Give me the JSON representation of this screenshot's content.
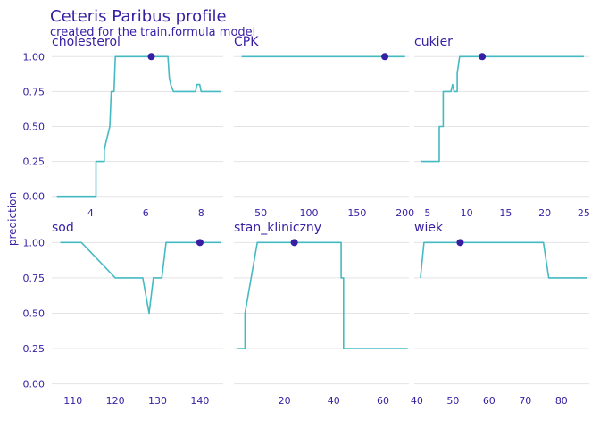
{
  "chart_data": {
    "type": "line",
    "title": "Ceteris Paribus profile",
    "subtitle": "created for the train.formula model",
    "ylabel": "prediction",
    "ylim": [
      -0.04,
      1.04
    ],
    "y_ticks": [
      0,
      0.25,
      0.5,
      0.75,
      1
    ],
    "y_tick_labels": [
      "0.00",
      "0.25",
      "0.50",
      "0.75",
      "1.00"
    ],
    "grid": true,
    "colors": {
      "line": "#46bac2",
      "point": "#371ea3",
      "text": "#371ea3"
    },
    "panels": [
      {
        "name": "cholesterol",
        "xlim": [
          2.6,
          8.8
        ],
        "x_ticks": [
          4,
          6,
          8
        ],
        "x_tick_labels": [
          "4",
          "6",
          "8"
        ],
        "series": [
          [
            2.78,
            0
          ],
          [
            4.2,
            0
          ],
          [
            4.2,
            0.25
          ],
          [
            4.5,
            0.25
          ],
          [
            4.5,
            0.33
          ],
          [
            4.55,
            0.38
          ],
          [
            4.7,
            0.5
          ],
          [
            4.75,
            0.75
          ],
          [
            4.85,
            0.75
          ],
          [
            4.9,
            1
          ],
          [
            6.8,
            1
          ],
          [
            6.85,
            0.85
          ],
          [
            6.9,
            0.8
          ],
          [
            7.0,
            0.75
          ],
          [
            7.8,
            0.75
          ],
          [
            7.85,
            0.8
          ],
          [
            7.95,
            0.8
          ],
          [
            8.0,
            0.75
          ],
          [
            8.7,
            0.75
          ]
        ],
        "point": [
          6.2,
          1
        ]
      },
      {
        "name": "CPK",
        "xlim": [
          22,
          204
        ],
        "x_ticks": [
          50,
          100,
          150,
          200
        ],
        "x_tick_labels": [
          "50",
          "100",
          "150",
          "200"
        ],
        "series": [
          [
            30,
            1
          ],
          [
            200,
            1
          ]
        ],
        "point": [
          179,
          1
        ]
      },
      {
        "name": "cukier",
        "xlim": [
          3.3,
          25.7
        ],
        "x_ticks": [
          5,
          10,
          15,
          20,
          25
        ],
        "x_tick_labels": [
          "5",
          "10",
          "15",
          "20",
          "25"
        ],
        "series": [
          [
            4.2,
            0.25
          ],
          [
            6.5,
            0.25
          ],
          [
            6.5,
            0.5
          ],
          [
            7.0,
            0.5
          ],
          [
            7.0,
            0.75
          ],
          [
            8.0,
            0.75
          ],
          [
            8.2,
            0.8
          ],
          [
            8.4,
            0.75
          ],
          [
            8.8,
            0.75
          ],
          [
            8.8,
            0.88
          ],
          [
            9.1,
            1
          ],
          [
            25,
            1
          ]
        ],
        "point": [
          12,
          1
        ]
      },
      {
        "name": "sod",
        "xlim": [
          105,
          145.5
        ],
        "x_ticks": [
          110,
          120,
          130,
          140
        ],
        "x_tick_labels": [
          "110",
          "120",
          "130",
          "140"
        ],
        "series": [
          [
            107,
            1
          ],
          [
            112,
            1
          ],
          [
            120,
            0.75
          ],
          [
            126.5,
            0.75
          ],
          [
            128,
            0.5
          ],
          [
            129,
            0.75
          ],
          [
            131,
            0.75
          ],
          [
            132,
            1
          ],
          [
            145,
            1
          ]
        ],
        "point": [
          140,
          1
        ]
      },
      {
        "name": "stan_kliniczny",
        "xlim": [
          -0.5,
          70.5
        ],
        "x_ticks": [
          20,
          40,
          60
        ],
        "x_tick_labels": [
          "20",
          "40",
          "60"
        ],
        "series": [
          [
            1,
            0.25
          ],
          [
            4,
            0.25
          ],
          [
            4,
            0.5
          ],
          [
            9,
            1
          ],
          [
            43,
            1
          ],
          [
            43,
            0.75
          ],
          [
            44,
            0.75
          ],
          [
            44,
            0.25
          ],
          [
            70,
            0.25
          ]
        ],
        "point": [
          24,
          1
        ]
      },
      {
        "name": "wiek",
        "xlim": [
          39.3,
          87.7
        ],
        "x_ticks": [
          40,
          50,
          60,
          70,
          80
        ],
        "x_tick_labels": [
          "40",
          "50",
          "60",
          "70",
          "80"
        ],
        "series": [
          [
            41,
            0.75
          ],
          [
            42,
            1
          ],
          [
            75,
            1
          ],
          [
            76.5,
            0.75
          ],
          [
            87,
            0.75
          ]
        ],
        "point": [
          52,
          1
        ]
      }
    ]
  }
}
